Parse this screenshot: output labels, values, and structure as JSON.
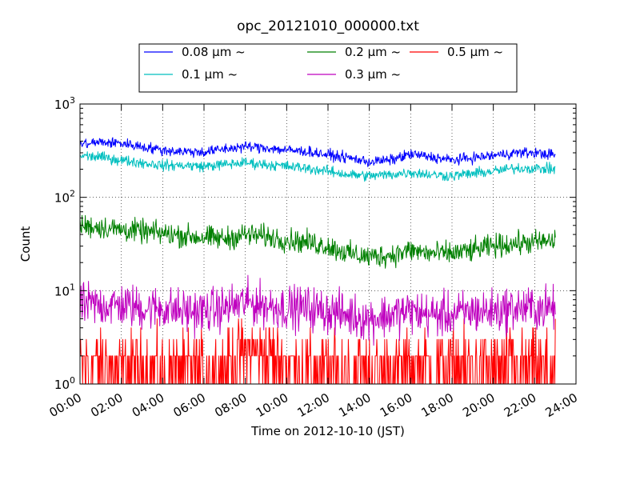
{
  "chart_data": {
    "type": "line",
    "title": "opc_20121010_000000.txt",
    "xlabel": "Time on 2012-10-10 (JST)",
    "ylabel": "Count",
    "y_scale": "log",
    "ylim": [
      1,
      1000
    ],
    "y_ticks": [
      {
        "value": 1,
        "base": "10",
        "exp": "0"
      },
      {
        "value": 10,
        "base": "10",
        "exp": "1"
      },
      {
        "value": 100,
        "base": "10",
        "exp": "2"
      },
      {
        "value": 1000,
        "base": "10",
        "exp": "3"
      }
    ],
    "xlim": [
      "00:00",
      "24:00"
    ],
    "x_ticks": [
      "00:00",
      "02:00",
      "04:00",
      "06:00",
      "08:00",
      "10:00",
      "12:00",
      "14:00",
      "16:00",
      "18:00",
      "20:00",
      "22:00",
      "24:00"
    ],
    "grid": true,
    "legend_position": "top-center, above plot",
    "series": [
      {
        "name": "0.08 μm ~",
        "color": "#0000ff",
        "noise_ratio": 1.12,
        "x": [
          "00:00",
          "01:00",
          "02:00",
          "03:00",
          "04:00",
          "05:00",
          "06:00",
          "07:00",
          "08:00",
          "09:00",
          "10:00",
          "11:00",
          "12:00",
          "13:00",
          "14:00",
          "15:00",
          "16:00",
          "17:00",
          "18:00",
          "19:00",
          "20:00",
          "21:00",
          "22:00",
          "23:00"
        ],
        "values": [
          370,
          390,
          380,
          350,
          320,
          310,
          305,
          330,
          350,
          340,
          320,
          310,
          285,
          265,
          240,
          250,
          290,
          270,
          250,
          265,
          280,
          300,
          300,
          285
        ]
      },
      {
        "name": "0.1 μm ~",
        "color": "#00bfbf",
        "noise_ratio": 1.12,
        "x": [
          "00:00",
          "01:00",
          "02:00",
          "03:00",
          "04:00",
          "05:00",
          "06:00",
          "07:00",
          "08:00",
          "09:00",
          "10:00",
          "11:00",
          "12:00",
          "13:00",
          "14:00",
          "15:00",
          "16:00",
          "17:00",
          "18:00",
          "19:00",
          "20:00",
          "21:00",
          "22:00",
          "23:00"
        ],
        "values": [
          280,
          270,
          250,
          235,
          220,
          220,
          215,
          225,
          235,
          225,
          215,
          205,
          190,
          175,
          170,
          175,
          185,
          175,
          170,
          180,
          190,
          205,
          205,
          200
        ]
      },
      {
        "name": "0.2 μm ~",
        "color": "#008000",
        "noise_ratio": 1.28,
        "x": [
          "00:00",
          "01:00",
          "02:00",
          "03:00",
          "04:00",
          "05:00",
          "06:00",
          "07:00",
          "08:00",
          "09:00",
          "10:00",
          "11:00",
          "12:00",
          "13:00",
          "14:00",
          "15:00",
          "16:00",
          "17:00",
          "18:00",
          "19:00",
          "20:00",
          "21:00",
          "22:00",
          "23:00"
        ],
        "values": [
          50,
          48,
          45,
          43,
          41,
          39,
          37,
          36,
          40,
          38,
          35,
          33,
          30,
          25,
          23,
          24,
          27,
          25,
          25,
          27,
          30,
          32,
          33,
          34
        ]
      },
      {
        "name": "0.3 μm ~",
        "color": "#bf00bf",
        "noise_ratio": 1.6,
        "x": [
          "00:00",
          "01:00",
          "02:00",
          "03:00",
          "04:00",
          "05:00",
          "06:00",
          "07:00",
          "08:00",
          "09:00",
          "10:00",
          "11:00",
          "12:00",
          "13:00",
          "14:00",
          "15:00",
          "16:00",
          "17:00",
          "18:00",
          "19:00",
          "20:00",
          "21:00",
          "22:00",
          "23:00"
        ],
        "values": [
          7,
          7,
          7,
          6.5,
          6.5,
          6,
          6,
          6.5,
          7.5,
          7,
          6.5,
          6.5,
          6,
          5.5,
          5,
          5.5,
          6,
          5.5,
          5.5,
          6,
          6,
          6.5,
          6.5,
          6.5
        ]
      },
      {
        "name": "0.5 μm ~",
        "color": "#ff0000",
        "noise_ratio": 2.2,
        "x": [
          "00:00",
          "01:00",
          "02:00",
          "03:00",
          "04:00",
          "05:00",
          "06:00",
          "07:00",
          "08:00",
          "09:00",
          "10:00",
          "11:00",
          "12:00",
          "13:00",
          "14:00",
          "15:00",
          "16:00",
          "17:00",
          "18:00",
          "19:00",
          "20:00",
          "21:00",
          "22:00",
          "23:00"
        ],
        "values": [
          1.6,
          1.6,
          1.5,
          1.5,
          1.4,
          1.4,
          1.4,
          1.5,
          2.2,
          2.0,
          1.6,
          1.5,
          1.4,
          1.4,
          1.4,
          1.4,
          1.5,
          1.5,
          1.5,
          1.5,
          1.5,
          1.5,
          1.5,
          1.5
        ]
      }
    ]
  }
}
